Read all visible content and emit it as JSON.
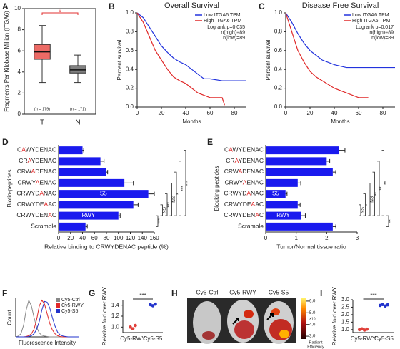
{
  "chart_data": [
    {
      "panel": "A",
      "type": "box",
      "ylabel": "Fragments Per Kilobase Million (ITGA6)",
      "categories": [
        "T",
        "N"
      ],
      "n_labels": [
        "(n = 179)",
        "(n = 171)"
      ],
      "annotation": "*",
      "boxes": [
        {
          "min": 3.0,
          "q1": 5.2,
          "median": 5.9,
          "q3": 6.6,
          "max": 8.4,
          "color": "#ec6a65"
        },
        {
          "min": 3.0,
          "q1": 3.9,
          "median": 4.2,
          "q3": 4.6,
          "max": 5.6,
          "color": "#808080"
        }
      ],
      "ylim": [
        0,
        10
      ],
      "yticks": [
        0,
        2,
        4,
        6,
        8,
        10
      ]
    },
    {
      "panel": "B",
      "type": "survival",
      "title": "Overall Survival",
      "xlabel": "Months",
      "ylabel": "Percent survival",
      "xlim": [
        0,
        90
      ],
      "xticks": [
        0,
        20,
        40,
        60,
        80
      ],
      "ylim": [
        0,
        1
      ],
      "yticks": [
        {
          "value": 0,
          "label": "0.0"
        },
        0.2,
        0.4,
        0.6,
        0.8,
        {
          "value": 1,
          "label": "1.0"
        }
      ],
      "series": [
        {
          "name": "Low ITGA6 TPM",
          "color": "#2233dd",
          "x": [
            0,
            5,
            10,
            15,
            20,
            25,
            30,
            35,
            40,
            45,
            50,
            55,
            60,
            70,
            80,
            90
          ],
          "values": [
            1,
            0.95,
            0.85,
            0.75,
            0.65,
            0.58,
            0.52,
            0.48,
            0.45,
            0.4,
            0.35,
            0.3,
            0.3,
            0.28,
            0.28,
            0.28
          ]
        },
        {
          "name": "High ITGA6 TPM",
          "color": "#e02828",
          "x": [
            0,
            5,
            10,
            15,
            20,
            25,
            30,
            35,
            40,
            45,
            50,
            60,
            70,
            72
          ],
          "values": [
            1,
            0.9,
            0.75,
            0.6,
            0.5,
            0.4,
            0.32,
            0.28,
            0.25,
            0.2,
            0.15,
            0.1,
            0.1,
            0.02
          ]
        }
      ],
      "annotations": [
        "Logrank p=0.035",
        "n(high)=89",
        "n(low)=89"
      ]
    },
    {
      "panel": "C",
      "type": "survival",
      "title": "Disease Free Survival",
      "xlabel": "Months",
      "ylabel": "Percent survival",
      "xlim": [
        0,
        90
      ],
      "xticks": [
        0,
        20,
        40,
        60,
        80
      ],
      "ylim": [
        0,
        1
      ],
      "yticks": [
        {
          "value": 0,
          "label": "0.0"
        },
        0.2,
        0.4,
        0.6,
        0.8,
        {
          "value": 1,
          "label": "1.0"
        }
      ],
      "series": [
        {
          "name": "Low ITGA6 TPM",
          "color": "#2233dd",
          "x": [
            0,
            5,
            10,
            15,
            20,
            25,
            30,
            40,
            50,
            60,
            70,
            80,
            90
          ],
          "values": [
            1,
            0.9,
            0.78,
            0.68,
            0.6,
            0.55,
            0.5,
            0.45,
            0.42,
            0.42,
            0.42,
            0.42,
            0.42
          ]
        },
        {
          "name": "High ITGA6 TPM",
          "color": "#e02828",
          "x": [
            0,
            5,
            10,
            15,
            20,
            25,
            30,
            40,
            50,
            60,
            68
          ],
          "values": [
            1,
            0.8,
            0.6,
            0.48,
            0.38,
            0.32,
            0.28,
            0.2,
            0.15,
            0.1,
            0.1
          ]
        }
      ],
      "annotations": [
        "Logrank p=0.017",
        "n(high)=89",
        "n(low)=89"
      ]
    },
    {
      "panel": "D",
      "type": "hbar",
      "xlabel": "Relative binding to CRWYDENAC peptide (%)",
      "ylabel": "Biotin-peptides",
      "highlight_letter": "A",
      "highlight_color": "#e02020",
      "color": "#1a1aee",
      "categories": [
        "CAWYDENAC",
        "CRAYDENAC",
        "CRWADENAC",
        "CRWYAENAC",
        "CRWYDANAC",
        "CRWYDEAAC",
        "CRWYDENAC",
        "Scramble"
      ],
      "values": [
        40,
        70,
        80,
        110,
        150,
        125,
        100,
        45
      ],
      "errors": [
        2,
        6,
        2,
        15,
        10,
        8,
        3,
        3
      ],
      "bar_labels": [
        null,
        null,
        null,
        null,
        "S5",
        null,
        "RWY",
        null
      ],
      "xlim": [
        0,
        160
      ],
      "xticks": [
        0,
        20,
        40,
        60,
        80,
        100,
        120,
        140,
        160
      ],
      "significance": [
        {
          "text": "***",
          "pair": [
            "CRWYDENAC",
            "Scramble"
          ]
        },
        {
          "text": "NS",
          "pair": [
            "CRWYDEAAC",
            "CRWYDENAC"
          ]
        },
        {
          "text": "***",
          "pair": [
            "CRWYDANAC",
            "CRWYDENAC"
          ]
        },
        {
          "text": "NS",
          "pair": [
            "CRWYAENAC",
            "CRWYDENAC"
          ]
        },
        {
          "text": "*",
          "pair": [
            "CRWADENAC",
            "CRWYDENAC"
          ]
        },
        {
          "text": "***",
          "pair": [
            "CRAYDENAC",
            "CRWYDENAC"
          ]
        },
        {
          "text": "***",
          "pair": [
            "CAWYDENAC",
            "CRWYDENAC"
          ]
        }
      ]
    },
    {
      "panel": "E",
      "type": "hbar",
      "xlabel": "Tumor/Normal tissue ratio",
      "ylabel": "Blocking peptides",
      "highlight_letter": "A",
      "highlight_color": "#e02020",
      "color": "#1a1aee",
      "categories": [
        "CAWYDENAC",
        "CRAYDENAC",
        "CRWADENAC",
        "CRWYAENAC",
        "CRWYDANAC",
        "CRWYDEAAC",
        "CRWYDENAC",
        "Scramble"
      ],
      "values": [
        2.4,
        2.0,
        2.2,
        1.05,
        0.65,
        1.05,
        1.15,
        2.2
      ],
      "errors": [
        0.2,
        0.1,
        0.1,
        0.1,
        0.05,
        0.08,
        0.15,
        0.1
      ],
      "bar_labels": [
        null,
        null,
        null,
        null,
        "S5",
        null,
        "RWY",
        null
      ],
      "xlim": [
        0,
        3
      ],
      "xticks": [
        0,
        1,
        2,
        3
      ],
      "significance": [
        {
          "text": "NS",
          "pair": [
            "CRWYDEAAC",
            "CRWYDENAC"
          ]
        },
        {
          "text": "*",
          "pair": [
            "CRWYDANAC",
            "CRWYDENAC"
          ]
        },
        {
          "text": "NS",
          "pair": [
            "CRWYAENAC",
            "CRWYDENAC"
          ]
        },
        {
          "text": "**",
          "pair": [
            "CRWADENAC",
            "CRWYDENAC"
          ]
        },
        {
          "text": "**",
          "pair": [
            "CRAYDENAC",
            "CRWYDENAC"
          ]
        },
        {
          "text": "**",
          "pair": [
            "CAWYDENAC",
            "CRWYDENAC"
          ]
        },
        {
          "text": "**",
          "pair": [
            "CRWYDENAC",
            "Scramble"
          ]
        }
      ]
    },
    {
      "panel": "F",
      "type": "line",
      "xlabel": "Fluorescence Intensity",
      "ylabel": "Count",
      "ylim": [
        0,
        100
      ],
      "series": [
        {
          "name": "Cy5-Ctrl",
          "color": "#888888",
          "values": [
            0,
            2,
            8,
            30,
            70,
            95,
            80,
            50,
            25,
            10,
            4,
            2,
            1,
            0,
            0,
            0,
            0,
            0,
            0,
            0,
            0,
            0,
            0,
            0,
            0
          ]
        },
        {
          "name": "Cy5-RWY",
          "color": "#e02828",
          "values": [
            0,
            0,
            0,
            0,
            1,
            3,
            8,
            20,
            45,
            80,
            95,
            85,
            60,
            35,
            18,
            8,
            3,
            1,
            0,
            0,
            0,
            0,
            0,
            0,
            0
          ]
        },
        {
          "name": "Cy5-S5",
          "color": "#2233cc",
          "values": [
            0,
            0,
            0,
            0,
            0,
            1,
            3,
            8,
            20,
            40,
            70,
            92,
            90,
            75,
            50,
            28,
            12,
            5,
            2,
            1,
            0,
            0,
            0,
            0,
            0
          ]
        }
      ]
    },
    {
      "panel": "G",
      "type": "dot",
      "ylabel": "Relative fold over RWY",
      "categories": [
        "Cy5-RWY",
        "Cy5-S5"
      ],
      "colors": [
        "#e0403a",
        "#2233cc"
      ],
      "points": [
        [
          1.0,
          0.97,
          1.03
        ],
        [
          1.41,
          1.39,
          1.42
        ]
      ],
      "annotation": "***",
      "ylim": [
        0.9,
        1.5
      ],
      "yticks": [
        {
          "value": 1,
          "label": "1.0"
        },
        1.2,
        1.4
      ]
    },
    {
      "panel": "H",
      "type": "image",
      "labels": [
        "Cy5-Ctrl",
        "Cy5-RWY",
        "Cy5-S5"
      ],
      "colorbar": {
        "lim": [
          2.7,
          6.3
        ],
        "ticks": [
          {
            "value": 6,
            "label": "6.0"
          },
          {
            "value": 5,
            "label": "5.0"
          },
          {
            "value": 4,
            "label": "4.0"
          },
          {
            "value": 3,
            "label": "3.0"
          }
        ],
        "exponent_label": "×10⁷",
        "label": [
          "Radiant",
          "Efficiency"
        ]
      }
    },
    {
      "panel": "I",
      "type": "dot",
      "ylabel": "Relative fold over RWY",
      "categories": [
        "Cy5-RWY",
        "Cy5-S5"
      ],
      "colors": [
        "#e0403a",
        "#2233cc"
      ],
      "points": [
        [
          1.0,
          1.05,
          0.97,
          1.03
        ],
        [
          2.62,
          2.68,
          2.58,
          2.66
        ]
      ],
      "annotation": "***",
      "ylim": [
        0.8,
        3.0
      ],
      "yticks": [
        {
          "value": 1,
          "label": "1.0"
        },
        1.5,
        {
          "value": 2,
          "label": "2.0"
        },
        2.5,
        {
          "value": 3,
          "label": "3.0"
        }
      ]
    }
  ]
}
